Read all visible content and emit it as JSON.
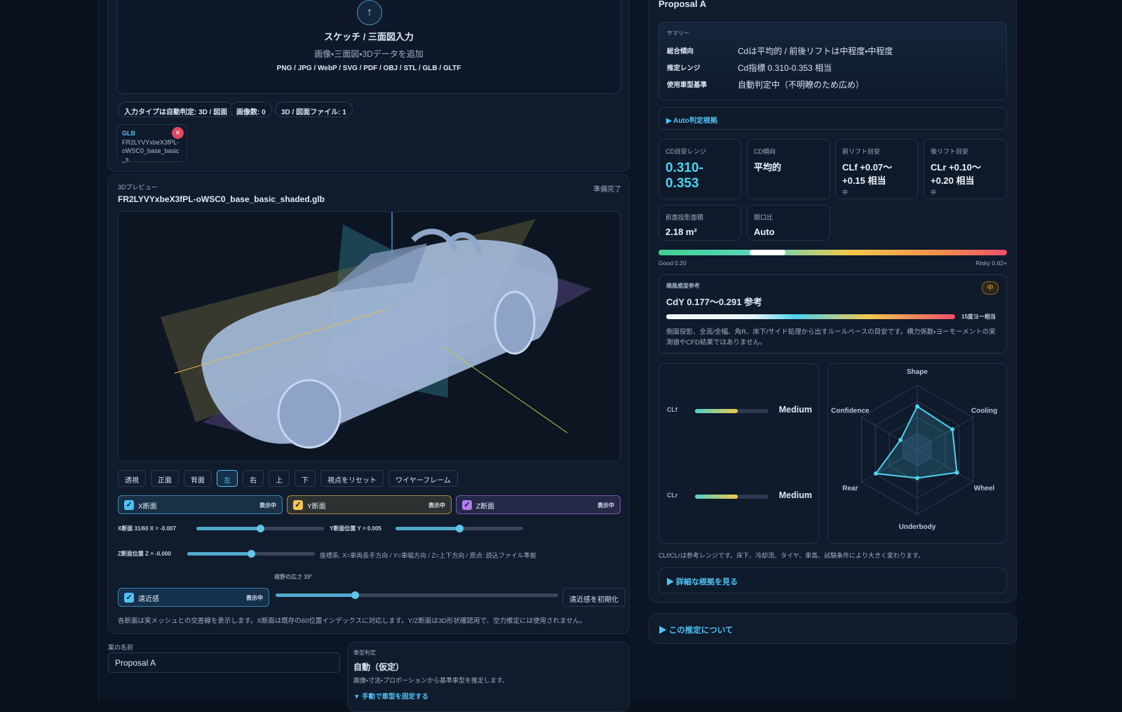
{
  "upload": {
    "title": "スケッチ / 三面図入力",
    "subtitle": "画像・三面図・3Dデータを追加",
    "formats": "PNG / JPG / WebP / SVG / PDF / OBJ / STL / GLB / GLTF"
  },
  "chips": [
    "入力タイプは自動判定: 3D / 図面",
    "画像数: 0",
    "3D / 図面ファイル: 1"
  ],
  "file_card": {
    "type": "GLB",
    "name": "FR2LYVYxbeX3fPL-oWSC0_base_basic_s"
  },
  "preview": {
    "label": "3Dプレビュー",
    "file": "FR2LYVYxbeX3fPL-oWSC0_base_basic_shaded.glb",
    "status": "準備完了"
  },
  "view_buttons": [
    "透視",
    "正面",
    "背面",
    "左",
    "右",
    "上",
    "下",
    "視点をリセット",
    "ワイヤーフレーム"
  ],
  "active_view": "左",
  "sections": [
    {
      "label": "X断面",
      "state": "表示中",
      "color": "#4fc3f7"
    },
    {
      "label": "Y断面",
      "state": "表示中",
      "color": "#f5c451"
    },
    {
      "label": "Z断面",
      "state": "表示中",
      "color": "#b27cf0"
    }
  ],
  "sliders": {
    "x": "X断面 31/60 X = -0.007",
    "y": "Y断面位置 Y = 0.005",
    "z": "Z断面位置 Z = -0.000",
    "fov": "視野の広さ 33°"
  },
  "coord_note": "座標系: X=車両長手方向 / Y=車幅方向 / Z=上下方向 / 原点: 読込ファイル準拠",
  "perspective": {
    "label": "遠近感",
    "state": "表示中",
    "reset": "遠近感を初期化"
  },
  "section_note": "各断面は実メッシュとの交差線を表示します。X断面は既存の60位置インデックスに対応します。Y/Z断面は3D形状確認用で、空力推定には使用されません。",
  "name_field": {
    "label": "案の名前",
    "value": "Proposal A"
  },
  "vehicle_type": {
    "label": "車型判定",
    "value": "自動（仮定）",
    "desc": "画像・寸法・プロポーションから基準車型を推定します。",
    "toggle": "▼ 手動で車型を固定する"
  },
  "proposal_title": "Proposal A",
  "summary": {
    "label": "サマリー",
    "rows": [
      [
        "総合傾向",
        "Cdは平均的 / 前後リフトは中程度・中程度"
      ],
      [
        "推定レンジ",
        "Cd指標 0.310-0.353 相当"
      ],
      [
        "使用車型基準",
        "自動判定中（不明瞭のため広め）"
      ]
    ]
  },
  "auto_basis": "▶ Auto判定根拠",
  "metrics": [
    {
      "label": "CD目安レンジ",
      "value": "0.310-0.353"
    },
    {
      "label": "CD傾向",
      "value": "平均的"
    },
    {
      "label": "前リフト目安",
      "value": "CLf +0.07〜+0.15 相当",
      "sub": "中"
    },
    {
      "label": "後リフト目安",
      "value": "CLr +0.10〜+0.20 相当",
      "sub": "中"
    },
    {
      "label": "前面投影面積",
      "value": "2.18 m²"
    },
    {
      "label": "開口比",
      "value": "Auto"
    }
  ],
  "cd_gauge": {
    "xlim": [
      0.2,
      0.62
    ],
    "xticks": [
      {
        "value": 0.2,
        "label": "Good 0.20"
      },
      {
        "value": 0.62,
        "label": "Risky 0.62+"
      }
    ],
    "range": [
      0.31,
      0.353
    ]
  },
  "crosswind": {
    "label": "横風感度参考",
    "badge": "中",
    "value": "CdY 0.177〜0.291 参考",
    "bar_label": "15度ヨー相当",
    "desc": "側面投影、全高/全幅、角R、床下/サイド処理から出すルールベースの目安です。横力係数・ヨーモーメントの実測値やCFD結果ではありません。"
  },
  "lift_levels": [
    {
      "name": "CLf",
      "level": "Medium"
    },
    {
      "name": "CLr",
      "level": "Medium"
    }
  ],
  "chart_data": {
    "type": "radar",
    "categories": [
      "Shape",
      "Cooling",
      "Wheel",
      "Underbody",
      "Rear",
      "Confidence"
    ],
    "values": [
      67,
      63,
      71,
      44,
      74,
      30
    ],
    "color": "#4fd1f0",
    "rlim": [
      0,
      100
    ],
    "rticks": [
      25,
      50,
      75,
      100
    ],
    "grid": true
  },
  "lift_note": "CLf/CLrは参考レンジです。床下、冷却流、タイヤ、車高、試験条件により大きく変わります。",
  "details": "▶ 詳細な根拠を見る",
  "about": "▶ この推定について"
}
